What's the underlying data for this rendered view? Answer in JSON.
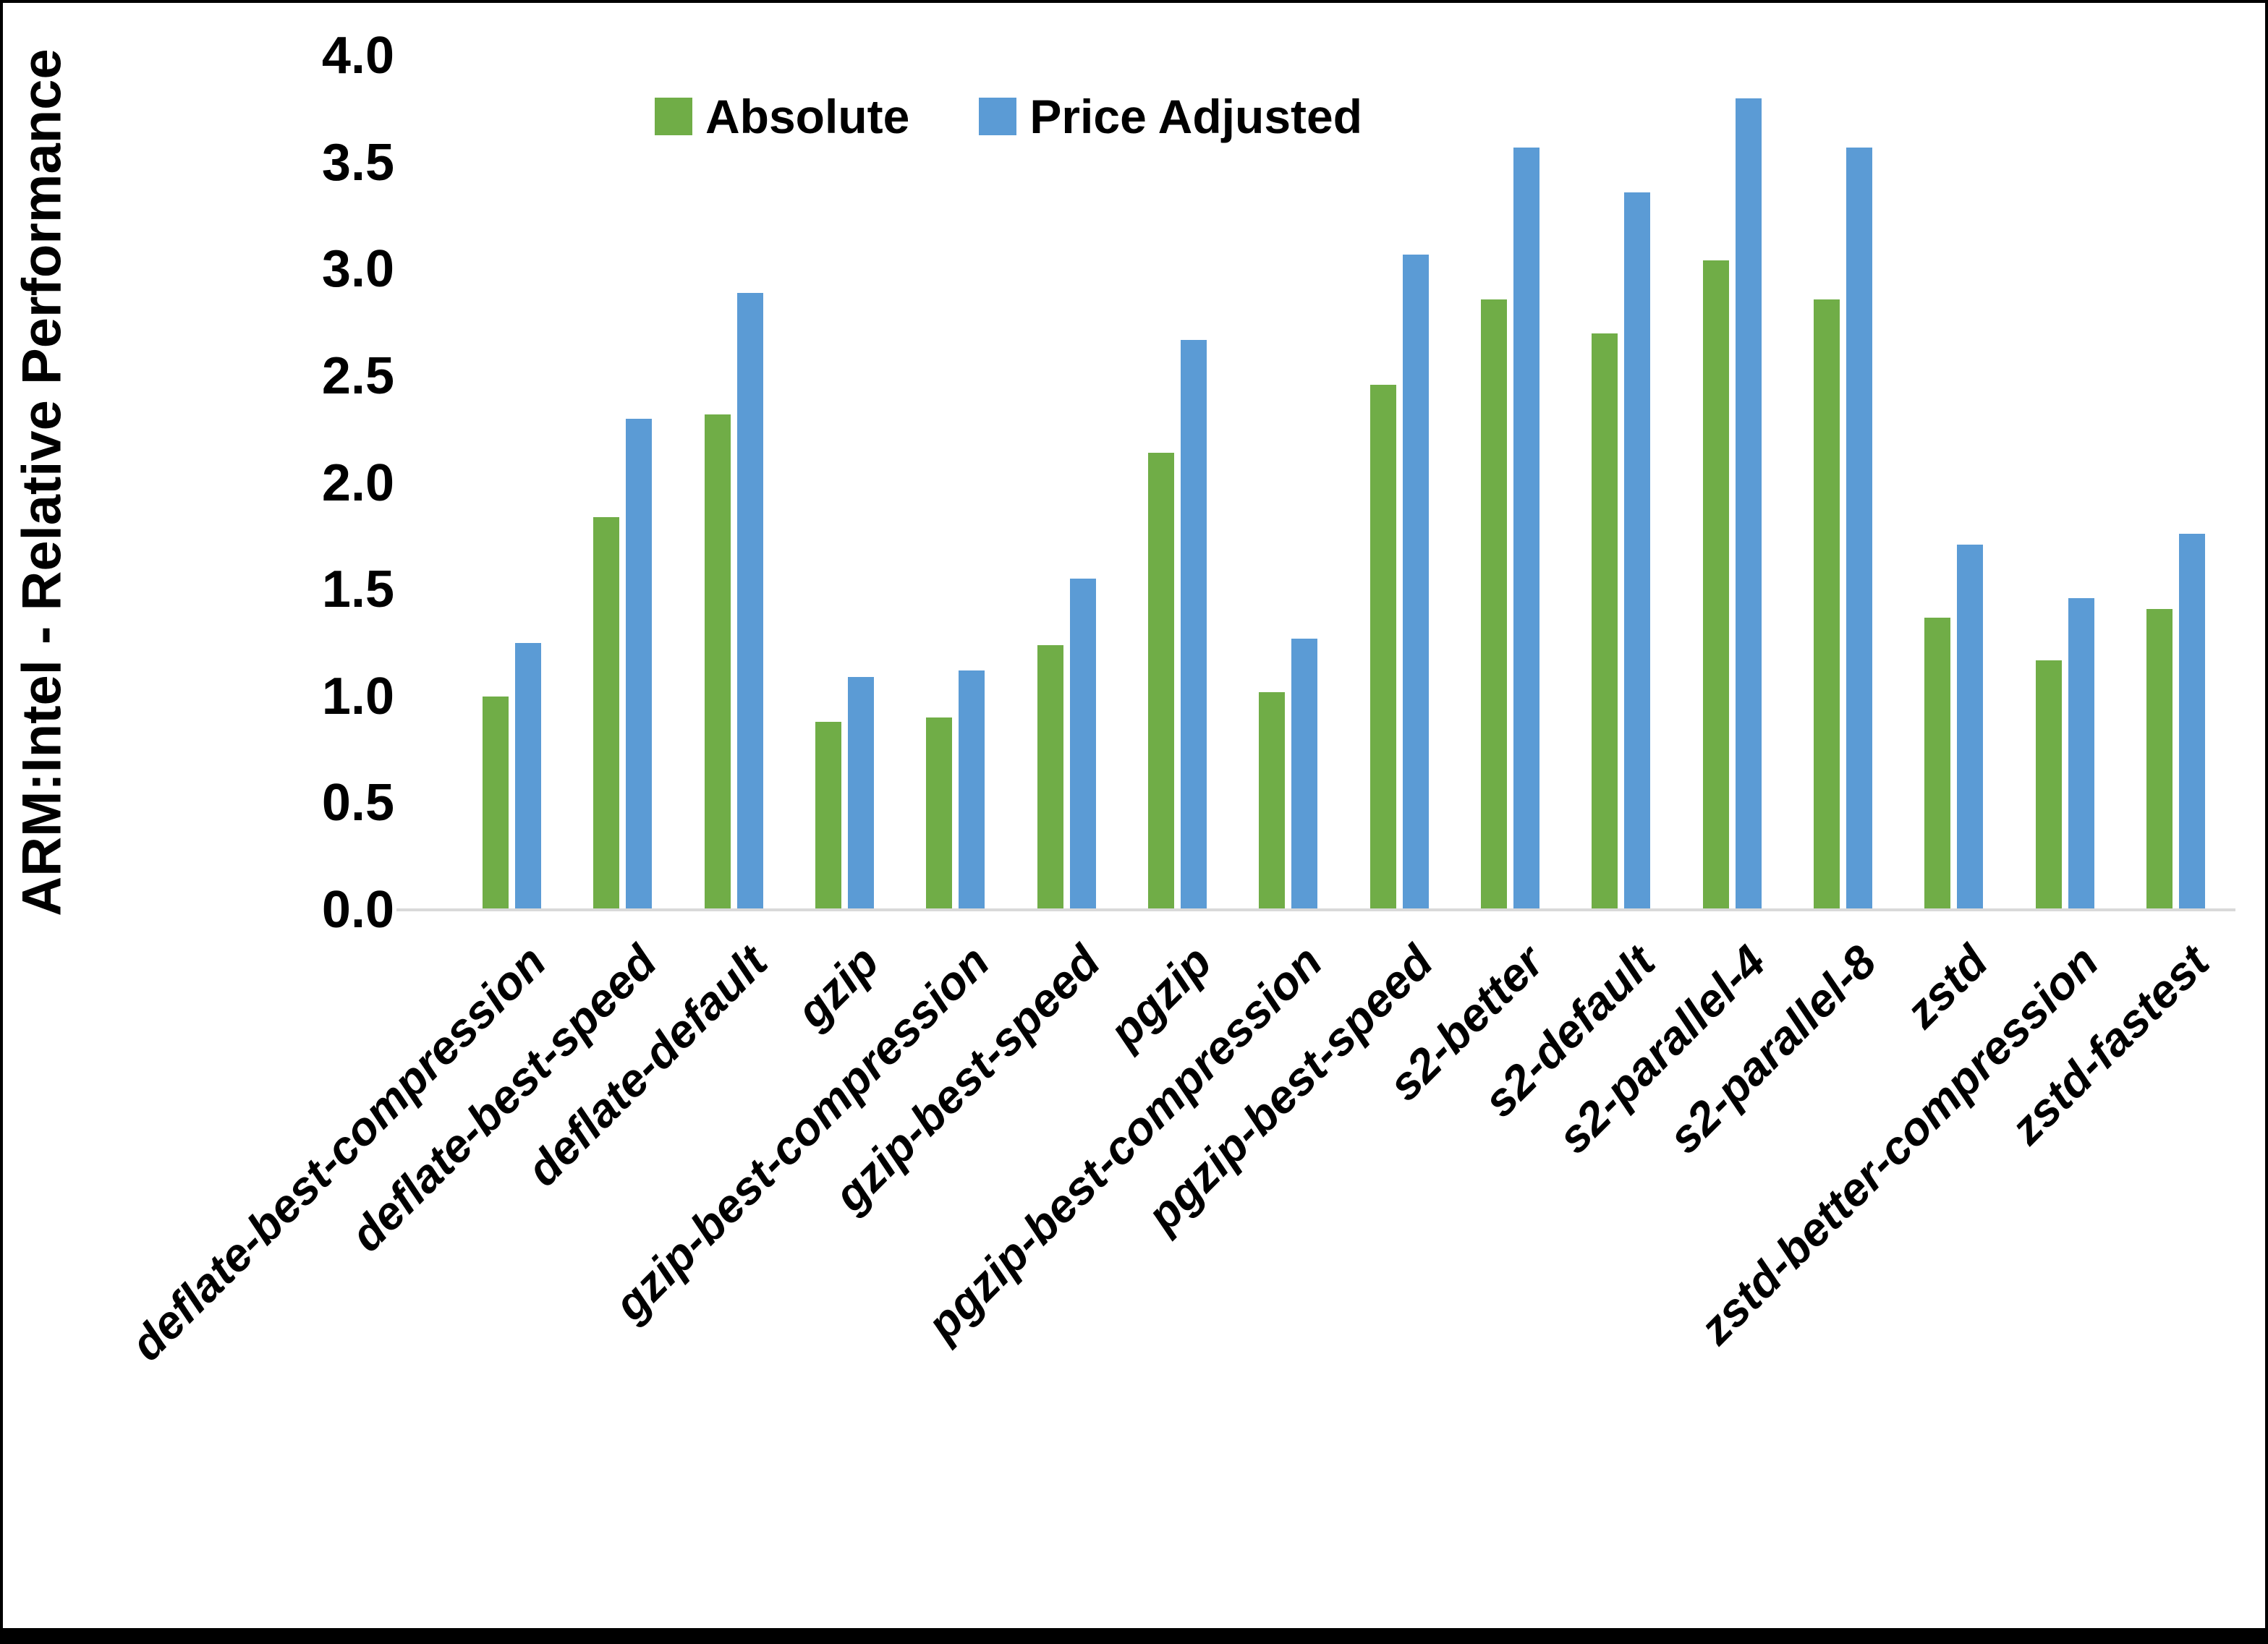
{
  "figure": {
    "y_axis_title": "ARM:Intel - Relative Performance",
    "y_tick_labels": [
      "0.0",
      "0.5",
      "1.0",
      "1.5",
      "2.0",
      "2.5",
      "3.0",
      "3.5",
      "4.0"
    ],
    "colors": {
      "absolute_green": "#70AD47",
      "price_adjusted_blue": "#5B9BD5",
      "axis_line": "#D9D9D9",
      "frame_black": "#000000"
    }
  },
  "chart_data": {
    "type": "bar",
    "title": "",
    "xlabel": "",
    "ylabel": "ARM:Intel - Relative Performance",
    "ylim": [
      0,
      4.0
    ],
    "ytick_step": 0.5,
    "grid": false,
    "legend_position": "top-center",
    "categories": [
      "deflate-best-compression",
      "deflate-best-speed",
      "deflate-default",
      "gzip",
      "gzip-best-compression",
      "gzip-best-speed",
      "pgzip",
      "pgzip-best-compression",
      "pgzip-best-speed",
      "s2-better",
      "s2-default",
      "s2-parallel-4",
      "s2-parallel-8",
      "zstd",
      "zstd-better-compression",
      "zstd-fastest"
    ],
    "series": [
      {
        "name": "Absolute",
        "color": "#70AD47",
        "values": [
          1.0,
          1.84,
          2.32,
          0.88,
          0.9,
          1.24,
          2.14,
          1.02,
          2.46,
          2.86,
          2.7,
          3.04,
          2.86,
          1.37,
          1.17,
          1.41
        ]
      },
      {
        "name": "Price Adjusted",
        "color": "#5B9BD5",
        "values": [
          1.25,
          2.3,
          2.89,
          1.09,
          1.12,
          1.55,
          2.67,
          1.27,
          3.07,
          3.57,
          3.36,
          3.8,
          3.57,
          1.71,
          1.46,
          1.76
        ]
      }
    ]
  }
}
